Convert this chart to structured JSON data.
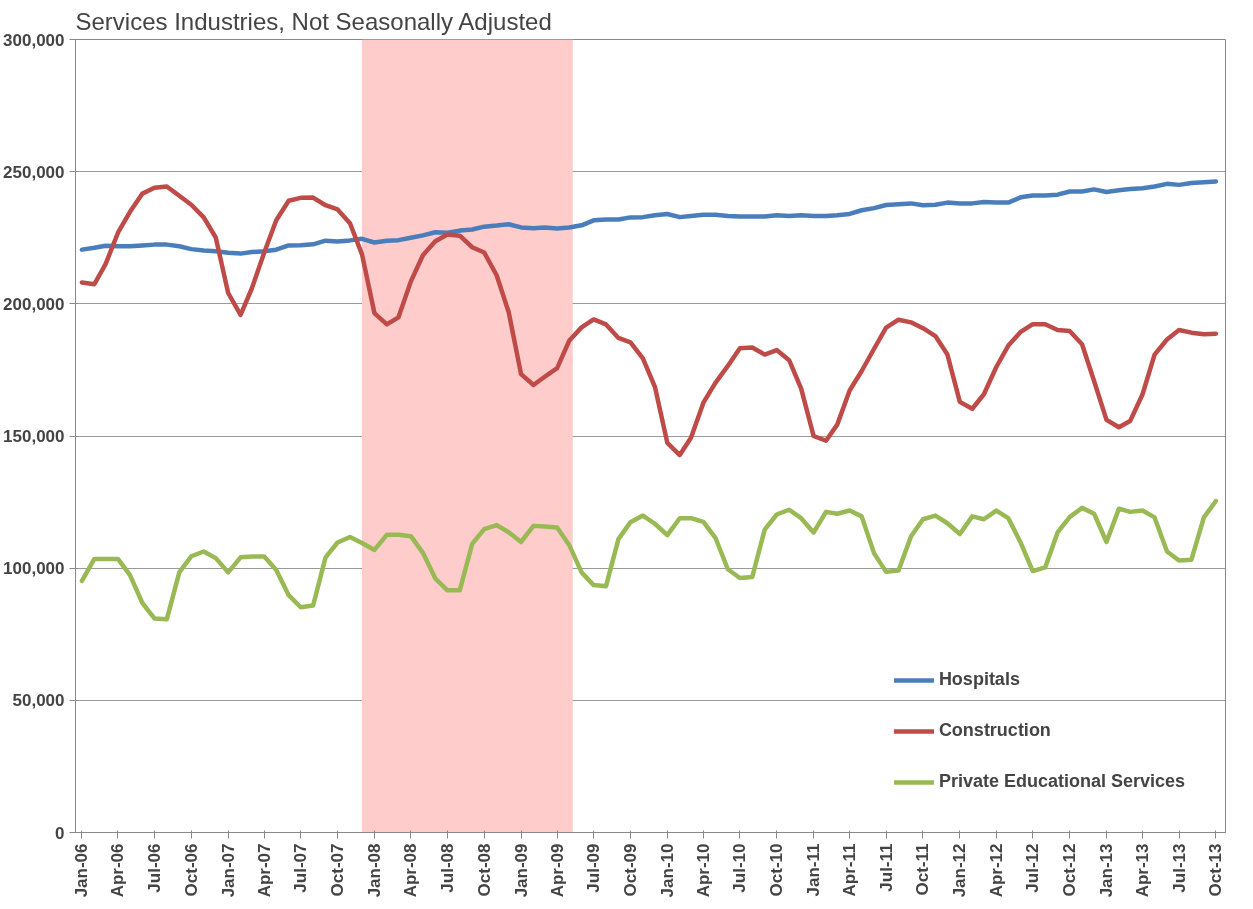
{
  "chart_data": {
    "type": "line",
    "title": "Services Industries, Not Seasonally Adjusted",
    "x": [
      "2006-01",
      "2006-02",
      "2006-03",
      "2006-04",
      "2006-05",
      "2006-06",
      "2006-07",
      "2006-08",
      "2006-09",
      "2006-10",
      "2006-11",
      "2006-12",
      "2007-01",
      "2007-02",
      "2007-03",
      "2007-04",
      "2007-05",
      "2007-06",
      "2007-07",
      "2007-08",
      "2007-09",
      "2007-10",
      "2007-11",
      "2007-12",
      "2008-01",
      "2008-02",
      "2008-03",
      "2008-04",
      "2008-05",
      "2008-06",
      "2008-07",
      "2008-08",
      "2008-09",
      "2008-10",
      "2008-11",
      "2008-12",
      "2009-01",
      "2009-02",
      "2009-03",
      "2009-04",
      "2009-05",
      "2009-06",
      "2009-07",
      "2009-08",
      "2009-09",
      "2009-10",
      "2009-11",
      "2009-12",
      "2010-01",
      "2010-02",
      "2010-03",
      "2010-04",
      "2010-05",
      "2010-06",
      "2010-07",
      "2010-08",
      "2010-09",
      "2010-10",
      "2010-11",
      "2010-12",
      "2011-01",
      "2011-02",
      "2011-03",
      "2011-04",
      "2011-05",
      "2011-06",
      "2011-07",
      "2011-08",
      "2011-09",
      "2011-10",
      "2011-11",
      "2011-12",
      "2012-01",
      "2012-02",
      "2012-03",
      "2012-04",
      "2012-05",
      "2012-06",
      "2012-07",
      "2012-08",
      "2012-09",
      "2012-10",
      "2012-11",
      "2012-12",
      "2013-01",
      "2013-02",
      "2013-03",
      "2013-04",
      "2013-05",
      "2013-06",
      "2013-07",
      "2013-08",
      "2013-09",
      "2013-10"
    ],
    "series": [
      {
        "name": "Hospitals",
        "color": "#4a7ebb",
        "values": [
          220500,
          221200,
          222000,
          221800,
          221800,
          222100,
          222400,
          222400,
          221800,
          220700,
          220200,
          219900,
          219300,
          219000,
          219600,
          219900,
          220500,
          222100,
          222200,
          222500,
          223900,
          223600,
          224000,
          224600,
          223200,
          223900,
          224100,
          225000,
          225900,
          227100,
          226900,
          227700,
          228100,
          229200,
          229600,
          230100,
          228900,
          228600,
          228900,
          228500,
          228900,
          229700,
          231600,
          231900,
          231900,
          232700,
          232800,
          233500,
          234000,
          232800,
          233200,
          233700,
          233700,
          233200,
          233000,
          233000,
          233000,
          233500,
          233200,
          233500,
          233200,
          233200,
          233500,
          234000,
          235400,
          236200,
          237400,
          237700,
          238000,
          237300,
          237500,
          238300,
          238000,
          238000,
          238500,
          238300,
          238300,
          240300,
          241000,
          241000,
          241300,
          242500,
          242500,
          243300,
          242300,
          243000,
          243400,
          243700,
          244400,
          245400,
          245000,
          245700,
          246000,
          246300
        ]
      },
      {
        "name": "Construction",
        "color": "#be4b48",
        "values": [
          208100,
          207400,
          215000,
          226900,
          234800,
          241700,
          243900,
          244400,
          240900,
          237500,
          232700,
          225100,
          204100,
          195800,
          205800,
          219400,
          231600,
          239000,
          240100,
          240200,
          237300,
          235700,
          230500,
          218700,
          196500,
          192200,
          194900,
          208500,
          218400,
          223700,
          226200,
          225800,
          221400,
          219400,
          210800,
          196900,
          173400,
          169300,
          172400,
          175700,
          186000,
          191100,
          194100,
          192200,
          187100,
          185400,
          179400,
          168600,
          147400,
          142800,
          149300,
          162600,
          170100,
          176500,
          183200,
          183500,
          180800,
          182500,
          178700,
          167900,
          150000,
          148200,
          154300,
          167200,
          174600,
          183000,
          191000,
          194000,
          193000,
          190800,
          187800,
          180800,
          162900,
          160300,
          165800,
          176100,
          184200,
          189400,
          192300,
          192300,
          190100,
          189700,
          184700,
          170800,
          156100,
          153300,
          155700,
          165800,
          180800,
          186500,
          190100,
          189100,
          188500,
          188700
        ]
      },
      {
        "name": "Private Educational Services",
        "color": "#98b954",
        "values": [
          95200,
          103500,
          103500,
          103500,
          97400,
          86800,
          81000,
          80700,
          98400,
          104500,
          106300,
          103800,
          98400,
          104100,
          104400,
          104400,
          99300,
          89800,
          85200,
          85900,
          104100,
          109700,
          111800,
          109500,
          106900,
          112600,
          112600,
          112100,
          105800,
          96100,
          91600,
          91600,
          109200,
          114800,
          116300,
          113600,
          109900,
          116000,
          115800,
          115400,
          108800,
          98400,
          93600,
          93200,
          111000,
          117400,
          119900,
          116800,
          112500,
          118900,
          118900,
          117500,
          111500,
          99600,
          96300,
          96700,
          114600,
          120300,
          122100,
          118900,
          113500,
          121300,
          120600,
          121800,
          119600,
          105600,
          98600,
          99100,
          112000,
          118500,
          119900,
          117000,
          112900,
          119600,
          118500,
          121800,
          118900,
          109600,
          98900,
          100300,
          113500,
          119300,
          122800,
          120600,
          109900,
          122500,
          121300,
          121800,
          119200,
          106300,
          102900,
          103200,
          119200,
          125400
        ]
      }
    ],
    "xlim": [
      "2005-12-16",
      "2013-10-25"
    ],
    "xticks": [
      {
        "value": "2006-01",
        "label": "Jan-06"
      },
      {
        "value": "2006-04",
        "label": "Apr-06"
      },
      {
        "value": "2006-07",
        "label": "Jul-06"
      },
      {
        "value": "2006-10",
        "label": "Oct-06"
      },
      {
        "value": "2007-01",
        "label": "Jan-07"
      },
      {
        "value": "2007-04",
        "label": "Apr-07"
      },
      {
        "value": "2007-07",
        "label": "Jul-07"
      },
      {
        "value": "2007-10",
        "label": "Oct-07"
      },
      {
        "value": "2008-01",
        "label": "Jan-08"
      },
      {
        "value": "2008-04",
        "label": "Apr-08"
      },
      {
        "value": "2008-07",
        "label": "Jul-08"
      },
      {
        "value": "2008-10",
        "label": "Oct-08"
      },
      {
        "value": "2009-01",
        "label": "Jan-09"
      },
      {
        "value": "2009-04",
        "label": "Apr-09"
      },
      {
        "value": "2009-07",
        "label": "Jul-09"
      },
      {
        "value": "2009-10",
        "label": "Oct-09"
      },
      {
        "value": "2010-01",
        "label": "Jan-10"
      },
      {
        "value": "2010-04",
        "label": "Apr-10"
      },
      {
        "value": "2010-07",
        "label": "Jul-10"
      },
      {
        "value": "2010-10",
        "label": "Oct-10"
      },
      {
        "value": "2011-01",
        "label": "Jan-11"
      },
      {
        "value": "2011-04",
        "label": "Apr-11"
      },
      {
        "value": "2011-07",
        "label": "Jul-11"
      },
      {
        "value": "2011-10",
        "label": "Oct-11"
      },
      {
        "value": "2012-01",
        "label": "Jan-12"
      },
      {
        "value": "2012-04",
        "label": "Apr-12"
      },
      {
        "value": "2012-07",
        "label": "Jul-12"
      },
      {
        "value": "2012-10",
        "label": "Oct-12"
      },
      {
        "value": "2013-01",
        "label": "Jan-13"
      },
      {
        "value": "2013-04",
        "label": "Apr-13"
      },
      {
        "value": "2013-07",
        "label": "Jul-13"
      },
      {
        "value": "2013-10",
        "label": "Oct-13"
      }
    ],
    "ylim": [
      0,
      300000
    ],
    "yticks": [
      {
        "value": 0,
        "label": "0"
      },
      {
        "value": 50000,
        "label": "50,000"
      },
      {
        "value": 100000,
        "label": "100,000"
      },
      {
        "value": 150000,
        "label": "150,000"
      },
      {
        "value": 200000,
        "label": "200,000"
      },
      {
        "value": 250000,
        "label": "250,000"
      },
      {
        "value": 300000,
        "label": "300,000"
      }
    ],
    "bands": [
      {
        "axis": "x",
        "from": "2007-12",
        "to": "2009-05-10",
        "color": "#ffcccc"
      }
    ],
    "grid": "y",
    "legend": "bottom right",
    "marker": "none",
    "line_style": "solid"
  }
}
